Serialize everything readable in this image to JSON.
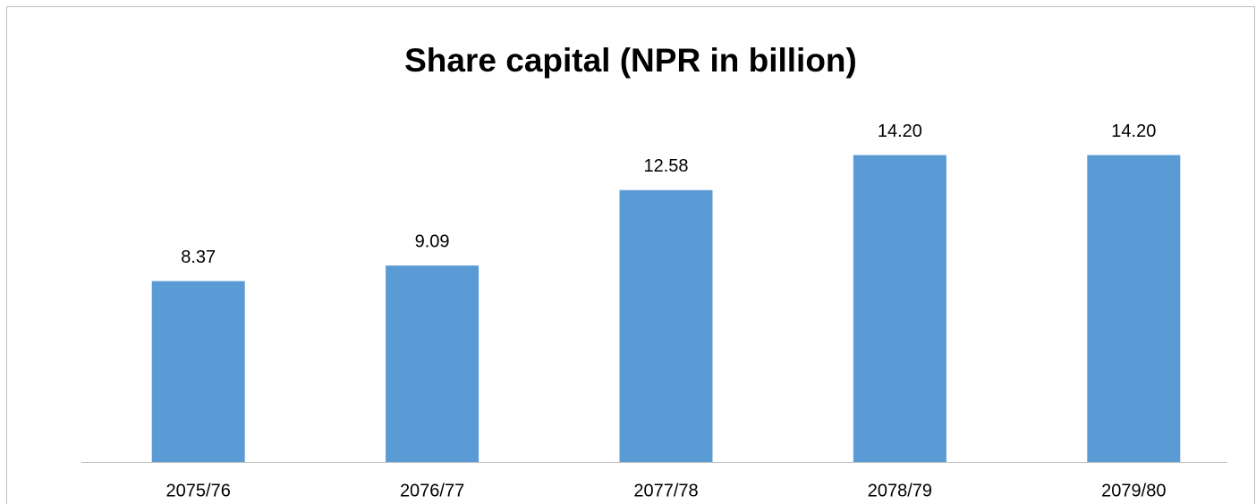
{
  "chart_data": {
    "type": "bar",
    "title": "Share capital (NPR in billion)",
    "categories": [
      "2075/76",
      "2076/77",
      "2077/78",
      "2078/79",
      "2079/80"
    ],
    "values": [
      8.37,
      9.09,
      12.58,
      14.2,
      14.2
    ],
    "value_labels": [
      "8.37",
      "9.09",
      "12.58",
      "14.20",
      "14.20"
    ],
    "color": "#5b9bd5",
    "ylim": [
      0,
      16
    ],
    "grid": false
  }
}
